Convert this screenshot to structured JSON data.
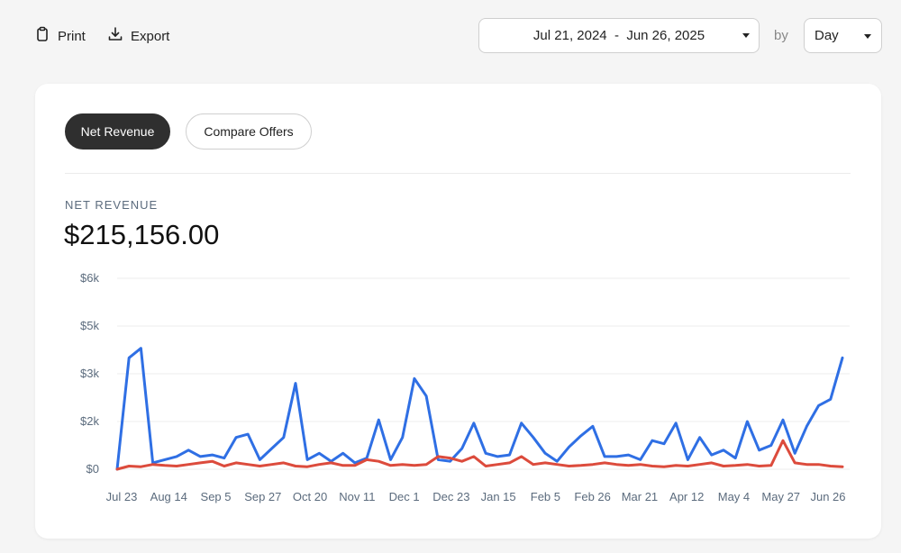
{
  "toolbar": {
    "print_label": "Print",
    "export_label": "Export",
    "date_range": "Jul 21, 2024  -  Jun 26, 2025",
    "by_label": "by",
    "granularity": "Day"
  },
  "tabs": [
    {
      "label": "Net Revenue",
      "active": true
    },
    {
      "label": "Compare Offers",
      "active": false
    }
  ],
  "metric": {
    "label": "NET REVENUE",
    "value": "$215,156.00"
  },
  "colors": {
    "primary_series": "#2f6fe4",
    "secondary_series": "#dc4b3c",
    "active_tab": "#2f2f2f"
  },
  "chart_data": {
    "type": "line",
    "ylim": [
      0,
      6000
    ],
    "ytick_values": [
      0,
      1500,
      3000,
      4500,
      6000
    ],
    "ytick_labels": [
      "$0",
      "$2k",
      "$3k",
      "$5k",
      "$6k"
    ],
    "xtick_labels": [
      "Jul 23",
      "Aug 14",
      "Sep 5",
      "Sep 27",
      "Oct 20",
      "Nov 11",
      "Dec 1",
      "Dec 23",
      "Jan 15",
      "Feb 5",
      "Feb 26",
      "Mar 21",
      "Apr 12",
      "May 4",
      "May 27",
      "Jun 26"
    ],
    "grid": true,
    "x_count": 62,
    "series": [
      {
        "values": [
          0,
          3500,
          3800,
          200,
          300,
          400,
          600,
          400,
          450,
          350,
          1000,
          1100,
          300,
          650,
          1000,
          2700,
          300,
          500,
          250,
          500,
          200,
          350,
          1550,
          300,
          1000,
          2850,
          2300,
          300,
          250,
          650,
          1450,
          500,
          400,
          450,
          1450,
          1000,
          500,
          250,
          700,
          1050,
          1350,
          400,
          400,
          450,
          300,
          900,
          800,
          1450,
          300,
          1000,
          450,
          600,
          350,
          1500,
          600,
          750,
          1550,
          500,
          1350,
          2000,
          2200,
          3500
        ]
      },
      {
        "values": [
          0,
          100,
          80,
          150,
          120,
          100,
          150,
          200,
          250,
          100,
          200,
          150,
          100,
          150,
          200,
          100,
          80,
          150,
          200,
          120,
          120,
          300,
          250,
          120,
          150,
          120,
          150,
          400,
          350,
          250,
          400,
          100,
          150,
          200,
          400,
          150,
          200,
          150,
          100,
          120,
          150,
          200,
          150,
          120,
          150,
          100,
          80,
          120,
          100,
          150,
          200,
          100,
          120,
          150,
          100,
          120,
          900,
          200,
          150,
          150,
          100,
          80
        ]
      }
    ]
  }
}
